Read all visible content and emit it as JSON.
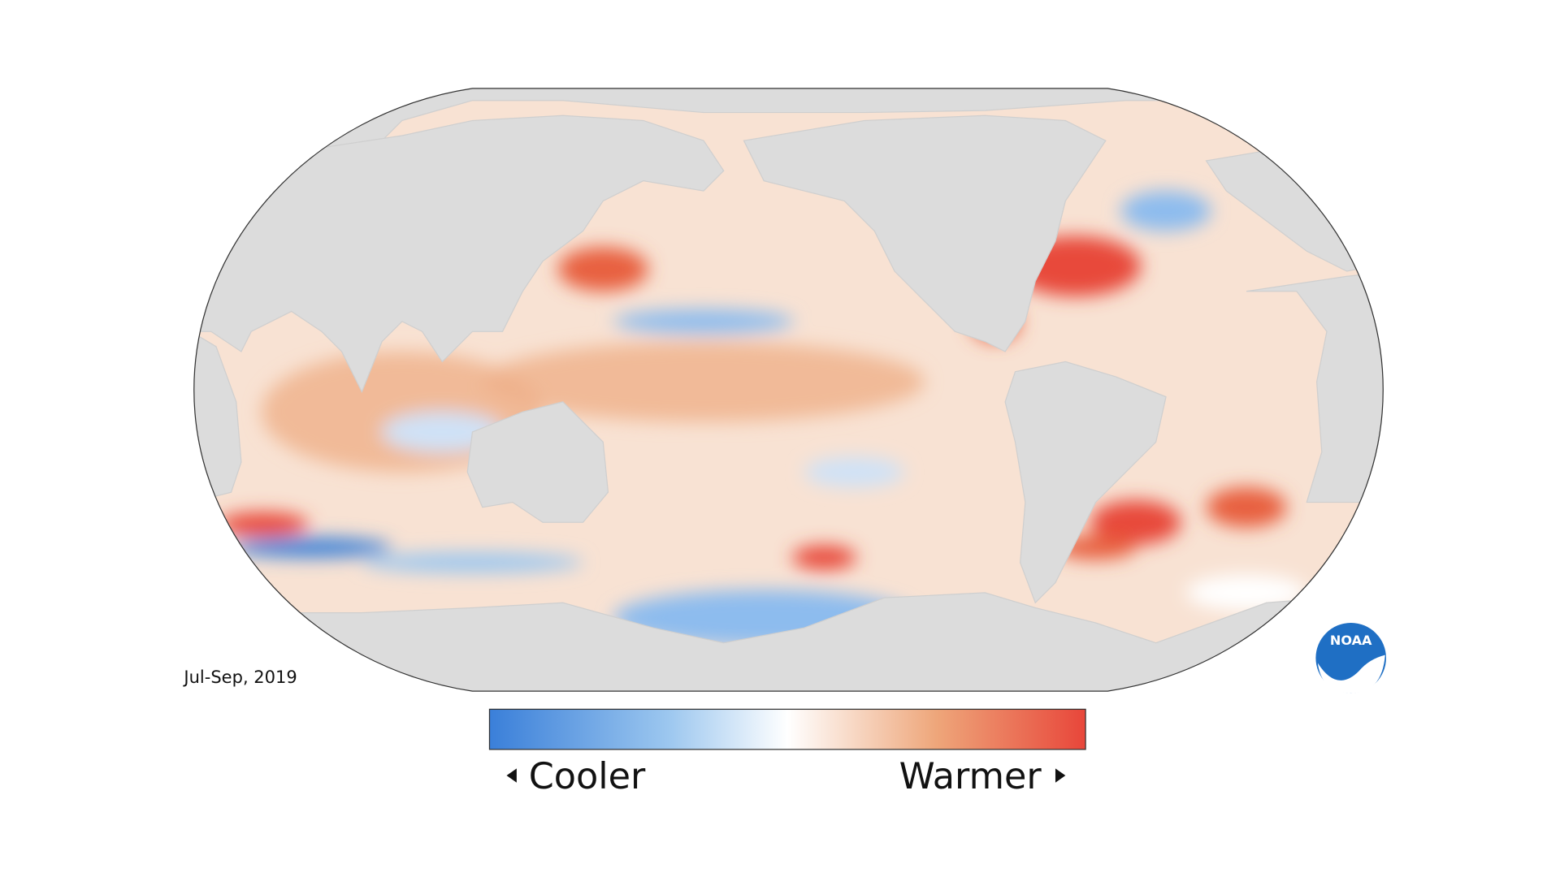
{
  "map": {
    "period": "Jul-Sep, 2019"
  },
  "legend": {
    "low_label": "Cooler",
    "high_label": "Warmer"
  },
  "logo": {
    "text": "NOAA"
  }
}
